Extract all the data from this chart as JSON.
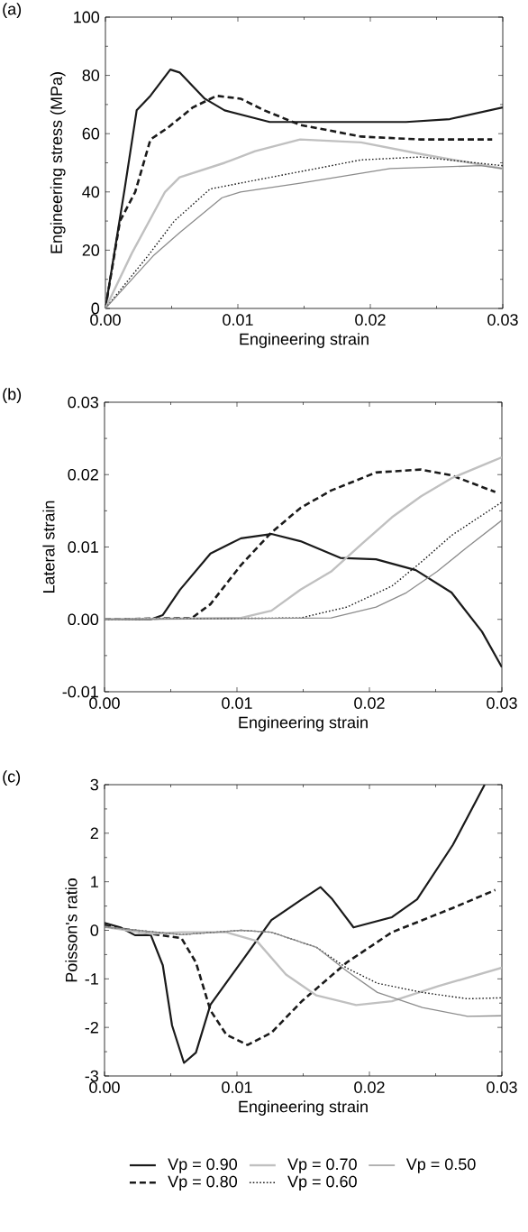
{
  "chart_data": [
    {
      "type": "line",
      "title": "(a)",
      "xlabel": "Engineering strain",
      "ylabel": "Engineering stress (MPa)",
      "xlim": [
        0,
        0.03
      ],
      "ylim": [
        0,
        100
      ],
      "xticks": [
        {
          "value": 0,
          "label": "0.00"
        },
        {
          "value": 0.01,
          "label": "0.01"
        },
        {
          "value": 0.02,
          "label": "0.02"
        },
        {
          "value": 0.03,
          "label": "0.03"
        }
      ],
      "yticks": [
        0,
        20,
        40,
        60,
        80,
        100
      ],
      "marker": "none",
      "series": [
        {
          "color": "#1a1a1a",
          "line_style": "solid",
          "x": [
            0,
            0.00145,
            0.00236,
            0.0034,
            0.0049,
            0.0056,
            0.0075,
            0.009,
            0.0124,
            0.017,
            0.0227,
            0.026,
            0.03
          ],
          "values": [
            0,
            41,
            68,
            73,
            82,
            81,
            72,
            68,
            64,
            64,
            64,
            65,
            69
          ]
        },
        {
          "color": "#1a1a1a",
          "line_style": "dashed",
          "x": [
            0,
            0.0011,
            0.00225,
            0.0034,
            0.0047,
            0.0066,
            0.0084,
            0.0102,
            0.012,
            0.0147,
            0.0193,
            0.0238,
            0.0292
          ],
          "values": [
            0,
            30,
            40,
            58,
            62,
            69,
            73,
            72,
            68,
            63,
            59,
            58,
            58
          ]
        },
        {
          "color": "#c0c0c0",
          "line_style": "solid",
          "x": [
            0,
            0.002,
            0.0045,
            0.0056,
            0.009,
            0.0113,
            0.0147,
            0.0193,
            0.0238,
            0.03
          ],
          "values": [
            0,
            19,
            40,
            45,
            50,
            54,
            58,
            57,
            53,
            48
          ]
        },
        {
          "color": "#1a1a1a",
          "line_style": "dotted",
          "x": [
            0,
            0.0032,
            0.0052,
            0.0079,
            0.0113,
            0.0159,
            0.0193,
            0.0238,
            0.03
          ],
          "values": [
            0,
            18,
            30,
            41,
            44,
            48,
            51,
            52,
            49
          ]
        },
        {
          "color": "#8c8c8c",
          "line_style": "solid",
          "x": [
            0,
            0.0036,
            0.0056,
            0.0088,
            0.0102,
            0.0147,
            0.0215,
            0.0283,
            0.03
          ],
          "values": [
            0,
            18,
            26,
            38,
            40,
            43,
            48,
            49,
            48
          ]
        }
      ]
    },
    {
      "type": "line",
      "title": "(b)",
      "xlabel": "Engineering strain",
      "ylabel": "Lateral strain",
      "xlim": [
        0,
        0.03
      ],
      "ylim": [
        -0.01,
        0.03
      ],
      "xticks": [
        {
          "value": 0,
          "label": "0.00"
        },
        {
          "value": 0.01,
          "label": "0.01"
        },
        {
          "value": 0.02,
          "label": "0.02"
        },
        {
          "value": 0.03,
          "label": "0.03"
        }
      ],
      "yticks": [
        {
          "value": -0.01,
          "label": "-0.01"
        },
        {
          "value": 0,
          "label": "0.00"
        },
        {
          "value": 0.01,
          "label": "0.01"
        },
        {
          "value": 0.02,
          "label": "0.02"
        },
        {
          "value": 0.03,
          "label": "0.03"
        }
      ],
      "marker": "none",
      "series": [
        {
          "color": "#1a1a1a",
          "line_style": "solid",
          "x": [
            0,
            0.0035,
            0.0044,
            0.0057,
            0.008,
            0.0103,
            0.0126,
            0.0148,
            0.0178,
            0.0205,
            0.0235,
            0.0262,
            0.0285,
            0.03
          ],
          "values": [
            0,
            0,
            0.0006,
            0.0041,
            0.0091,
            0.0112,
            0.0118,
            0.0108,
            0.0085,
            0.0083,
            0.0068,
            0.0037,
            -0.0017,
            -0.0066
          ]
        },
        {
          "color": "#1a1a1a",
          "line_style": "dashed",
          "x": [
            0,
            0.0066,
            0.008,
            0.0103,
            0.0126,
            0.0148,
            0.0171,
            0.0205,
            0.0239,
            0.0262,
            0.0295
          ],
          "values": [
            0,
            0.0002,
            0.0021,
            0.0075,
            0.012,
            0.0154,
            0.0178,
            0.0203,
            0.0207,
            0.0199,
            0.0176
          ]
        },
        {
          "color": "#c0c0c0",
          "line_style": "solid",
          "x": [
            0,
            0.0103,
            0.0126,
            0.0148,
            0.0171,
            0.0194,
            0.0217,
            0.0239,
            0.0262,
            0.03
          ],
          "values": [
            0,
            0.0002,
            0.0012,
            0.0041,
            0.0066,
            0.0104,
            0.0141,
            0.017,
            0.0195,
            0.0224
          ]
        },
        {
          "color": "#1a1a1a",
          "line_style": "dotted",
          "x": [
            0,
            0.0148,
            0.0183,
            0.0217,
            0.0239,
            0.0262,
            0.03
          ],
          "values": [
            0,
            0.0002,
            0.0017,
            0.0046,
            0.0079,
            0.0116,
            0.0162
          ]
        },
        {
          "color": "#8c8c8c",
          "line_style": "solid",
          "x": [
            0,
            0.0171,
            0.0205,
            0.0228,
            0.0251,
            0.0274,
            0.03
          ],
          "values": [
            0,
            0.0002,
            0.0017,
            0.0037,
            0.0066,
            0.01,
            0.0137
          ]
        }
      ]
    },
    {
      "type": "line",
      "title": "(c)",
      "xlabel": "Engineering strain",
      "ylabel": "Poisson's ratio",
      "xlim": [
        0,
        0.03
      ],
      "ylim": [
        -3,
        3
      ],
      "xticks": [
        {
          "value": 0,
          "label": "0.00"
        },
        {
          "value": 0.01,
          "label": "0.01"
        },
        {
          "value": 0.02,
          "label": "0.02"
        },
        {
          "value": 0.03,
          "label": "0.03"
        }
      ],
      "yticks": [
        {
          "value": -3,
          "label": "-3"
        },
        {
          "value": -2,
          "label": "-2"
        },
        {
          "value": -1,
          "label": "-1"
        },
        0,
        1,
        2,
        3
      ],
      "marker": "none",
      "legend": "bottom",
      "series": [
        {
          "name": "Vp = 0.90",
          "color": "#1a1a1a",
          "line_style": "solid",
          "x": [
            0,
            0.0012,
            0.0023,
            0.0035,
            0.0044,
            0.0051,
            0.006,
            0.0069,
            0.008,
            0.0103,
            0.0126,
            0.0149,
            0.0163,
            0.0172,
            0.0188,
            0.0217,
            0.0236,
            0.0263,
            0.0287
          ],
          "values": [
            0.15,
            0.06,
            -0.1,
            -0.1,
            -0.72,
            -1.96,
            -2.73,
            -2.52,
            -1.53,
            -0.66,
            0.21,
            0.64,
            0.89,
            0.64,
            0.06,
            0.27,
            0.64,
            1.76,
            3.0
          ]
        },
        {
          "name": "Vp = 0.80",
          "color": "#1a1a1a",
          "line_style": "dashed",
          "x": [
            0,
            0.0035,
            0.0058,
            0.0069,
            0.008,
            0.0092,
            0.0108,
            0.0126,
            0.0149,
            0.0183,
            0.0217,
            0.0263,
            0.0295
          ],
          "values": [
            0.1,
            -0.07,
            -0.16,
            -0.66,
            -1.65,
            -2.15,
            -2.36,
            -2.11,
            -1.46,
            -0.66,
            -0.04,
            0.46,
            0.83
          ]
        },
        {
          "name": "Vp = 0.70",
          "color": "#c0c0c0",
          "line_style": "solid",
          "x": [
            0,
            0.0035,
            0.0058,
            0.0092,
            0.0115,
            0.0137,
            0.016,
            0.019,
            0.0217,
            0.0252,
            0.03
          ],
          "values": [
            0.07,
            -0.07,
            -0.04,
            -0.04,
            -0.22,
            -0.91,
            -1.34,
            -1.54,
            -1.46,
            -1.15,
            -0.77
          ]
        },
        {
          "name": "Vp = 0.60",
          "color": "#1a1a1a",
          "line_style": "dotted",
          "x": [
            0,
            0.0058,
            0.0103,
            0.0126,
            0.016,
            0.0183,
            0.0206,
            0.024,
            0.0274,
            0.03
          ],
          "values": [
            0.07,
            -0.09,
            0,
            -0.04,
            -0.35,
            -0.78,
            -1.09,
            -1.28,
            -1.41,
            -1.39
          ]
        },
        {
          "name": "Vp = 0.50",
          "color": "#8c8c8c",
          "line_style": "solid",
          "x": [
            0,
            0.0058,
            0.0103,
            0.0126,
            0.016,
            0.0183,
            0.0206,
            0.024,
            0.0274,
            0.03
          ],
          "values": [
            0.07,
            -0.09,
            0,
            -0.04,
            -0.35,
            -0.84,
            -1.28,
            -1.59,
            -1.77,
            -1.76
          ]
        }
      ]
    }
  ]
}
